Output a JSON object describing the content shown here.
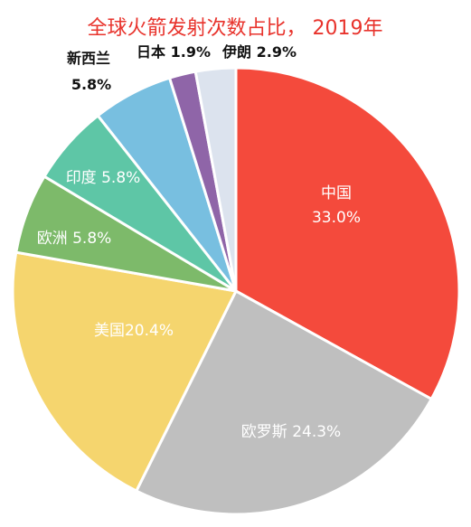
{
  "chart_data": {
    "type": "pie",
    "title": "全球火箭发射次数占比， 2019年",
    "slices": [
      {
        "category": "中国",
        "value": 33.0,
        "label": "33.0%",
        "color": "#f44a3c"
      },
      {
        "category": "欧罗斯",
        "value": 24.3,
        "label": "24.3%",
        "color": "#bfbfbf"
      },
      {
        "category": "美国",
        "value": 20.4,
        "label": "20.4%",
        "color": "#f5d56e"
      },
      {
        "category": "欧洲",
        "value": 5.8,
        "label": "5.8%",
        "color": "#7dba6a"
      },
      {
        "category": "印度",
        "value": 5.8,
        "label": "5.8%",
        "color": "#5ec6a6"
      },
      {
        "category": "新西兰",
        "value": 5.8,
        "label": "5.8%",
        "color": "#78bfe0"
      },
      {
        "category": "日本",
        "value": 1.9,
        "label": "1.9%",
        "color": "#8f65a8"
      },
      {
        "category": "伊朗",
        "value": 2.9,
        "label": "2.9%",
        "color": "#dce3ee"
      }
    ]
  }
}
